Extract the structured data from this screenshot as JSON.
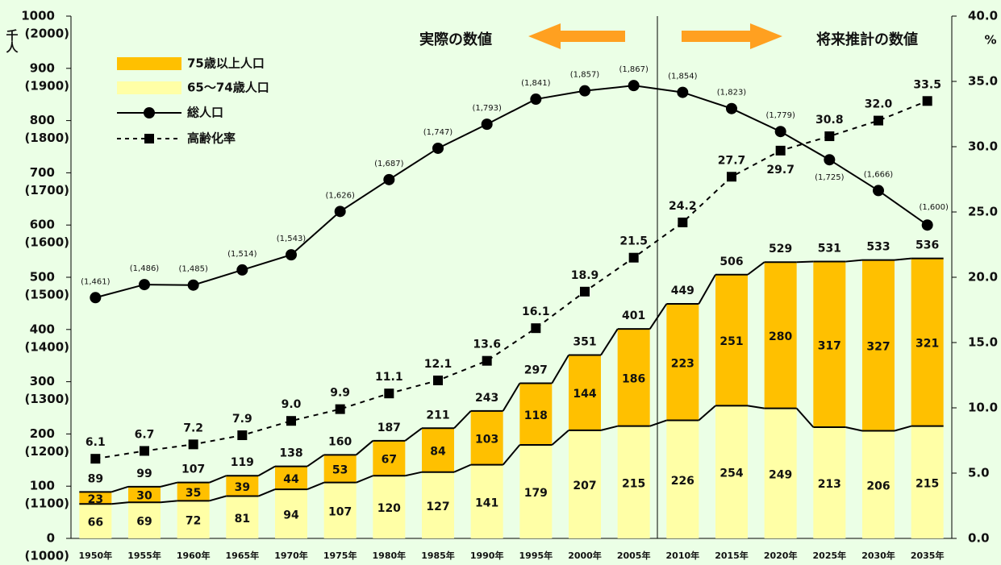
{
  "chart_data": {
    "type": "bar",
    "annotations": [
      "実際の数値",
      "将来推計の数値"
    ],
    "y_label": "千人",
    "y2_label": "%",
    "categories": [
      "1950年",
      "1955年",
      "1960年",
      "1965年",
      "1970年",
      "1975年",
      "1980年",
      "1985年",
      "1990年",
      "1995年",
      "2000年",
      "2005年",
      "2010年",
      "2015年",
      "2020年",
      "2025年",
      "2030年",
      "2035年"
    ],
    "series": [
      {
        "name": "65～74歳人口",
        "type": "bar",
        "color": "#ffffa6",
        "values": [
          66,
          69,
          72,
          81,
          94,
          107,
          120,
          127,
          141,
          179,
          207,
          215,
          226,
          254,
          249,
          213,
          206,
          215
        ]
      },
      {
        "name": "75歳以上人口",
        "type": "bar",
        "color": "#ffc000",
        "values": [
          23,
          30,
          35,
          39,
          44,
          53,
          67,
          84,
          103,
          118,
          144,
          186,
          223,
          251,
          280,
          317,
          327,
          321
        ]
      },
      {
        "name": "総人口",
        "type": "line",
        "axis": "y3",
        "color": "#000000",
        "line_style": "solid",
        "marker": "circle",
        "values": [
          1461,
          1486,
          1485,
          1514,
          1543,
          1626,
          1687,
          1747,
          1793,
          1841,
          1857,
          1867,
          1854,
          1823,
          1779,
          1725,
          1666,
          1600
        ],
        "value_labels": [
          "(1,461)",
          "(1,486)",
          "(1,485)",
          "(1,514)",
          "(1,543)",
          "(1,626)",
          "(1,687)",
          "(1,747)",
          "(1,793)",
          "(1,841)",
          "(1,857)",
          "(1,867)",
          "(1,854)",
          "(1,823)",
          "(1,779)",
          "(1,725)",
          "(1,666)",
          "(1,600)"
        ]
      },
      {
        "name": "高齢化率",
        "type": "line",
        "axis": "y2",
        "color": "#000000",
        "line_style": "dashed",
        "marker": "square",
        "values": [
          6.1,
          6.7,
          7.2,
          7.9,
          9.0,
          9.9,
          11.1,
          12.1,
          13.6,
          16.1,
          18.9,
          21.5,
          24.2,
          27.7,
          29.7,
          30.8,
          32.0,
          33.5
        ],
        "value_labels": [
          "6.1",
          "6.7",
          "7.2",
          "7.9",
          "9.0",
          "9.9",
          "11.1",
          "12.1",
          "13.6",
          "16.1",
          "18.9",
          "21.5",
          "24.2",
          "27.7",
          "29.7",
          "30.8",
          "32.0",
          "33.5"
        ]
      }
    ],
    "totals": [
      89,
      99,
      107,
      119,
      138,
      160,
      187,
      211,
      243,
      297,
      351,
      401,
      449,
      506,
      529,
      531,
      533,
      536
    ],
    "ylim": [
      0,
      1000
    ],
    "yticks": [
      0,
      100,
      200,
      300,
      400,
      500,
      600,
      700,
      800,
      900,
      1000
    ],
    "y3lim": [
      1000,
      2000
    ],
    "y3ticks": [
      {
        "value": 1000,
        "label": "(1000)"
      },
      {
        "value": 1100,
        "label": "(1100)"
      },
      {
        "value": 1200,
        "label": "(1200)"
      },
      {
        "value": 1300,
        "label": "(1300)"
      },
      {
        "value": 1400,
        "label": "(1400)"
      },
      {
        "value": 1500,
        "label": "(1500)"
      },
      {
        "value": 1600,
        "label": "(1600)"
      },
      {
        "value": 1700,
        "label": "(1700)"
      },
      {
        "value": 1800,
        "label": "(1800)"
      },
      {
        "value": 1900,
        "label": "(1900)"
      },
      {
        "value": 2000,
        "label": "(2000)"
      }
    ],
    "y2lim": [
      0,
      40
    ],
    "y2ticks": [
      {
        "value": 0,
        "label": "0.0"
      },
      {
        "value": 5,
        "label": "5.0"
      },
      {
        "value": 10,
        "label": "10.0"
      },
      {
        "value": 15,
        "label": "15.0"
      },
      {
        "value": 20,
        "label": "20.0"
      },
      {
        "value": 25,
        "label": "25.0"
      },
      {
        "value": 30,
        "label": "30.0"
      },
      {
        "value": 35,
        "label": "35.0"
      },
      {
        "value": 40,
        "label": "40.0"
      }
    ],
    "grid": false
  }
}
